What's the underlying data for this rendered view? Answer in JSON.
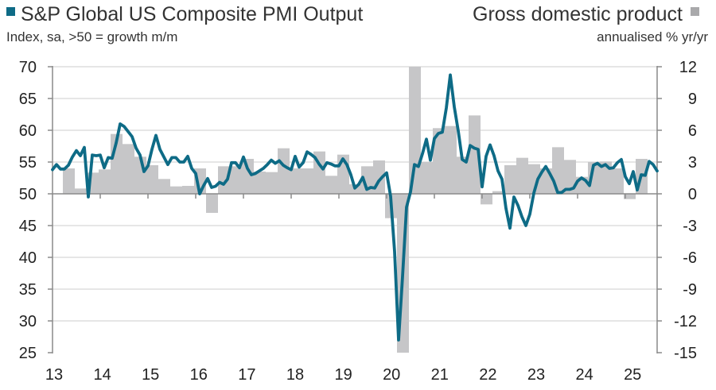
{
  "chart_data": {
    "type": "bar+line",
    "title_left": "S&P Global US Composite PMI Output",
    "subtitle_left": "Index, sa, >50 = growth m/m",
    "title_right": "Gross domestic product",
    "subtitle_right": "annualised % yr/yr",
    "legend": [
      {
        "name": "S&P Global US Composite PMI Output",
        "color": "#0e6b86",
        "type": "line",
        "placement": "top-left"
      },
      {
        "name": "Gross domestic product",
        "color": "#c6c6c8",
        "type": "bar",
        "placement": "top-right"
      }
    ],
    "x_tick_labels": [
      "13",
      "14",
      "15",
      "16",
      "17",
      "18",
      "19",
      "20",
      "21",
      "22",
      "23",
      "24",
      "25"
    ],
    "y_left": {
      "ylim": [
        25,
        70
      ],
      "ticks": [
        "70",
        "65",
        "60",
        "55",
        "50",
        "45",
        "40",
        "35",
        "30",
        "25"
      ]
    },
    "y_right": {
      "ylim": [
        -15,
        12
      ],
      "ticks": [
        "12",
        "9",
        "6",
        "3",
        "0",
        "-3",
        "-6",
        "-9",
        "-12",
        "-15"
      ]
    },
    "grid": true,
    "pmi_monthly": {
      "start": "Jan 2013",
      "values": [
        53.8,
        54.6,
        53.9,
        53.9,
        54.5,
        55.8,
        56.8,
        56.0,
        57.3,
        49.5,
        56.1,
        56.0,
        56.1,
        54.1,
        55.7,
        55.6,
        58.0,
        61.0,
        60.6,
        59.8,
        59.0,
        57.2,
        56.1,
        53.5,
        54.4,
        57.0,
        59.2,
        57.0,
        55.8,
        54.6,
        55.7,
        55.7,
        55.0,
        55.0,
        55.9,
        54.0,
        53.2,
        50.0,
        51.3,
        52.4,
        51.0,
        51.2,
        51.8,
        51.5,
        52.3,
        54.9,
        54.9,
        54.1,
        55.8,
        54.0,
        53.0,
        53.2,
        53.6,
        54.0,
        54.6,
        55.3,
        54.8,
        55.2,
        54.5,
        54.1,
        53.8,
        55.9,
        54.2,
        54.9,
        56.6,
        56.2,
        55.7,
        54.7,
        53.9,
        54.9,
        54.7,
        54.4,
        54.4,
        55.5,
        54.6,
        53.0,
        50.9,
        51.5,
        52.6,
        50.7,
        51.0,
        50.9,
        52.0,
        52.7,
        53.3,
        49.6,
        40.9,
        27.0,
        37.0,
        47.9,
        50.3,
        54.6,
        54.3,
        56.3,
        58.6,
        55.3,
        58.7,
        59.5,
        59.7,
        63.5,
        68.7,
        63.7,
        59.9,
        55.4,
        55.0,
        57.6,
        57.2,
        57.0,
        51.1,
        55.9,
        57.7,
        56.0,
        53.6,
        52.3,
        47.7,
        44.6,
        49.5,
        48.2,
        46.4,
        45.0,
        46.8,
        50.1,
        52.3,
        53.4,
        54.3,
        53.2,
        52.0,
        50.2,
        50.2,
        50.7,
        50.7,
        50.9,
        52.0,
        52.5,
        52.1,
        51.3,
        54.5,
        54.8,
        54.3,
        54.6,
        54.0,
        54.1,
        54.9,
        55.4,
        52.7,
        51.6,
        53.5,
        50.6,
        53.0,
        52.9,
        55.1,
        54.6,
        53.6
      ]
    },
    "gdp_quarterly": {
      "start": "Q2 2013",
      "note_axis_clipped": true,
      "values": [
        2.4,
        0.5,
        2.0,
        2.3,
        5.65,
        4.7,
        3.5,
        2.7,
        1.4,
        0.7,
        0.75,
        2.4,
        -1.8,
        2.6,
        2.6,
        3.3,
        2.1,
        2.05,
        4.3,
        2.4,
        2.4,
        4.0,
        1.7,
        3.7,
        0.9,
        2.6,
        3.15,
        -2.3,
        -15,
        12,
        3.0,
        6.2,
        6.4,
        3.5,
        7.4,
        -1.0,
        0.25,
        2.7,
        3.4,
        2.8,
        2.4,
        4.4,
        3.2,
        1.6,
        3.0,
        3.05,
        2.4,
        -0.5,
        3.3
      ]
    }
  }
}
